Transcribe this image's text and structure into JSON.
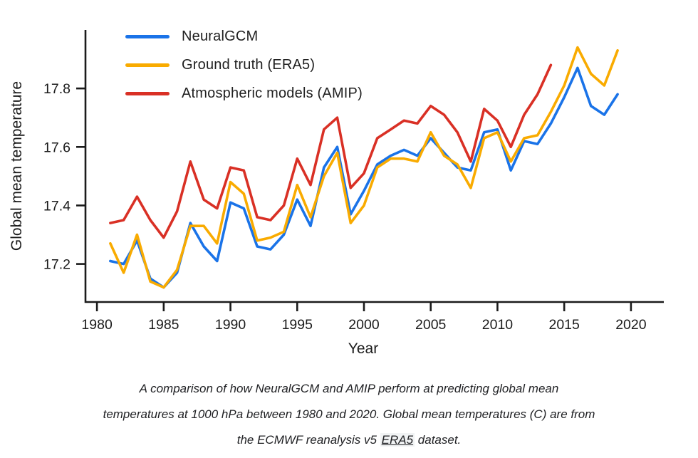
{
  "chart_data": {
    "type": "line",
    "title": "",
    "xlabel": "Year",
    "ylabel": "Global mean temperature",
    "x_ticks": [
      1980,
      1985,
      1990,
      1995,
      2000,
      2005,
      2010,
      2015,
      2020
    ],
    "y_ticks": [
      17.2,
      17.4,
      17.6,
      17.8
    ],
    "xlim": [
      1979.14,
      2022.46
    ],
    "ylim": [
      17.07,
      18.0
    ],
    "grid": false,
    "legend_position": "top-left",
    "axis_color": "#1b1b1b",
    "series": [
      {
        "name": "NeuralGCM",
        "color": "#1a73e8",
        "years": [
          1981,
          1982,
          1983,
          1984,
          1985,
          1986,
          1987,
          1988,
          1989,
          1990,
          1991,
          1992,
          1993,
          1994,
          1995,
          1996,
          1997,
          1998,
          1999,
          2000,
          2001,
          2002,
          2003,
          2004,
          2005,
          2006,
          2007,
          2008,
          2009,
          2010,
          2011,
          2012,
          2013,
          2014,
          2015,
          2016,
          2017,
          2018,
          2019
        ],
        "values": [
          17.21,
          17.2,
          17.28,
          17.15,
          17.12,
          17.17,
          17.34,
          17.26,
          17.21,
          17.41,
          17.39,
          17.26,
          17.25,
          17.3,
          17.42,
          17.33,
          17.53,
          17.6,
          17.37,
          17.45,
          17.54,
          17.57,
          17.59,
          17.57,
          17.63,
          17.58,
          17.53,
          17.52,
          17.65,
          17.66,
          17.52,
          17.62,
          17.61,
          17.68,
          17.77,
          17.87,
          17.74,
          17.71,
          17.78
        ]
      },
      {
        "name": "Ground truth (ERA5)",
        "color": "#f9ab00",
        "years": [
          1981,
          1982,
          1983,
          1984,
          1985,
          1986,
          1987,
          1988,
          1989,
          1990,
          1991,
          1992,
          1993,
          1994,
          1995,
          1996,
          1997,
          1998,
          1999,
          2000,
          2001,
          2002,
          2003,
          2004,
          2005,
          2006,
          2007,
          2008,
          2009,
          2010,
          2011,
          2012,
          2013,
          2014,
          2015,
          2016,
          2017,
          2018,
          2019
        ],
        "values": [
          17.27,
          17.17,
          17.3,
          17.14,
          17.12,
          17.18,
          17.33,
          17.33,
          17.27,
          17.48,
          17.44,
          17.28,
          17.29,
          17.31,
          17.47,
          17.36,
          17.5,
          17.58,
          17.34,
          17.4,
          17.53,
          17.56,
          17.56,
          17.55,
          17.65,
          17.57,
          17.54,
          17.46,
          17.63,
          17.65,
          17.55,
          17.63,
          17.64,
          17.72,
          17.81,
          17.94,
          17.85,
          17.81,
          17.93
        ]
      },
      {
        "name": "Atmospheric models (AMIP)",
        "color": "#d93025",
        "years": [
          1981,
          1982,
          1983,
          1984,
          1985,
          1986,
          1987,
          1988,
          1989,
          1990,
          1991,
          1992,
          1993,
          1994,
          1995,
          1996,
          1997,
          1998,
          1999,
          2000,
          2001,
          2002,
          2003,
          2004,
          2005,
          2006,
          2007,
          2008,
          2009,
          2010,
          2011,
          2012,
          2013,
          2014
        ],
        "values": [
          17.34,
          17.35,
          17.43,
          17.35,
          17.29,
          17.38,
          17.55,
          17.42,
          17.39,
          17.53,
          17.52,
          17.36,
          17.35,
          17.4,
          17.56,
          17.47,
          17.66,
          17.7,
          17.46,
          17.51,
          17.63,
          17.66,
          17.69,
          17.68,
          17.74,
          17.71,
          17.65,
          17.55,
          17.73,
          17.69,
          17.6,
          17.71,
          17.78,
          17.88
        ]
      }
    ]
  },
  "caption": {
    "line1": "A comparison of how NeuralGCM and AMIP perform at predicting global mean",
    "line2": "temperatures at 1000 hPa between 1980 and 2020. Global mean temperatures (C) are from",
    "line3_pre": "the ECMWF reanalysis v5 ",
    "link_text": "ERA5",
    "line3_post": " dataset."
  }
}
